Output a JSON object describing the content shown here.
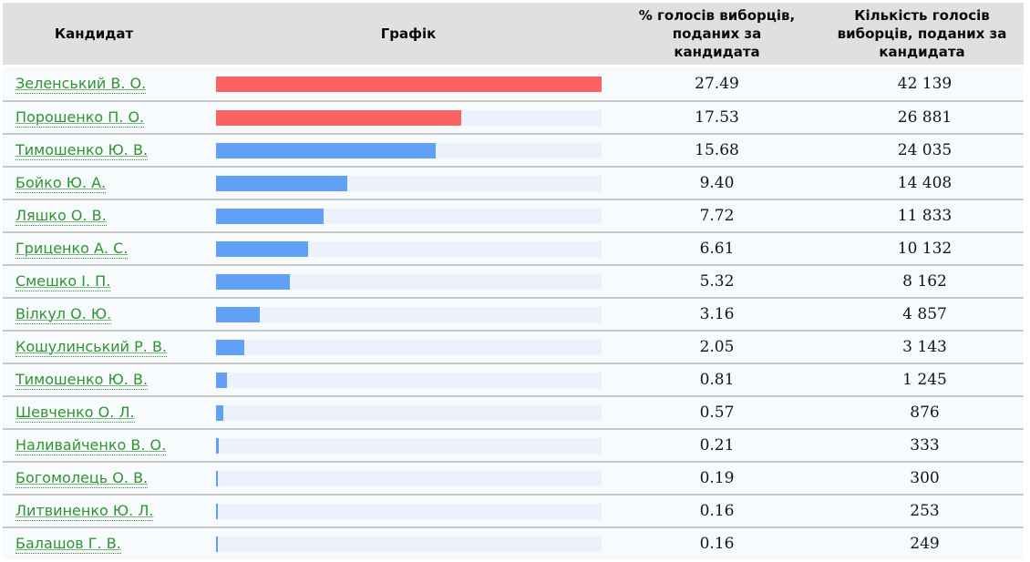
{
  "colors": {
    "header_bg": "#e0e0e0",
    "row_bg": "#f7fbfd",
    "separator": "#c8c8c8",
    "bar_track": "#edf1fb",
    "bar_red": "#fd6263",
    "bar_blue": "#60a0f7",
    "link_green": "#2f962f"
  },
  "table": {
    "columns": [
      {
        "label": "Кандидат"
      },
      {
        "label": "Графік"
      },
      {
        "label": "% голосів виборців, поданих за кандидата"
      },
      {
        "label": "Кількість голосів виборців, поданих за кандидата"
      }
    ],
    "rows": [
      {
        "candidate": "Зеленський В. О.",
        "percent": "27.49",
        "votes": "42 139",
        "bar_color": "#fd6263"
      },
      {
        "candidate": "Порошенко П. О.",
        "percent": "17.53",
        "votes": "26 881",
        "bar_color": "#fd6263"
      },
      {
        "candidate": "Тимошенко Ю. В.",
        "percent": "15.68",
        "votes": "24 035",
        "bar_color": "#60a0f7"
      },
      {
        "candidate": "Бойко Ю. А.",
        "percent": "9.40",
        "votes": "14 408",
        "bar_color": "#60a0f7"
      },
      {
        "candidate": "Ляшко О. В.",
        "percent": "7.72",
        "votes": "11 833",
        "bar_color": "#60a0f7"
      },
      {
        "candidate": "Гриценко А. С.",
        "percent": "6.61",
        "votes": "10 132",
        "bar_color": "#60a0f7"
      },
      {
        "candidate": "Смешко І. П.",
        "percent": "5.32",
        "votes": "8 162",
        "bar_color": "#60a0f7"
      },
      {
        "candidate": "Вілкул О. Ю.",
        "percent": "3.16",
        "votes": "4 857",
        "bar_color": "#60a0f7"
      },
      {
        "candidate": "Кошулинський Р. В.",
        "percent": "2.05",
        "votes": "3 143",
        "bar_color": "#60a0f7"
      },
      {
        "candidate": "Тимошенко Ю. В.",
        "percent": "0.81",
        "votes": "1 245",
        "bar_color": "#60a0f7"
      },
      {
        "candidate": "Шевченко О. Л.",
        "percent": "0.57",
        "votes": "876",
        "bar_color": "#60a0f7"
      },
      {
        "candidate": "Наливайченко В. О.",
        "percent": "0.21",
        "votes": "333",
        "bar_color": "#60a0f7"
      },
      {
        "candidate": "Богомолець О. В.",
        "percent": "0.19",
        "votes": "300",
        "bar_color": "#60a0f7"
      },
      {
        "candidate": "Литвиненко Ю. Л.",
        "percent": "0.16",
        "votes": "253",
        "bar_color": "#60a0f7"
      },
      {
        "candidate": "Балашов Г. В.",
        "percent": "0.16",
        "votes": "249",
        "bar_color": "#60a0f7"
      }
    ]
  },
  "chart_data": {
    "type": "bar",
    "orientation": "horizontal",
    "title": "",
    "categories": [
      "Зеленський В. О.",
      "Порошенко П. О.",
      "Тимошенко Ю. В.",
      "Бойко Ю. А.",
      "Ляшко О. В.",
      "Гриценко А. С.",
      "Смешко І. П.",
      "Вілкул О. Ю.",
      "Кошулинський Р. В.",
      "Тимошенко Ю. В.",
      "Шевченко О. Л.",
      "Наливайченко В. О.",
      "Богомолець О. В.",
      "Литвиненко Ю. Л.",
      "Балашов Г. В."
    ],
    "series": [
      {
        "name": "% голосів виборців, поданих за кандидата",
        "values": [
          27.49,
          17.53,
          15.68,
          9.4,
          7.72,
          6.61,
          5.32,
          3.16,
          2.05,
          0.81,
          0.57,
          0.21,
          0.19,
          0.16,
          0.16
        ]
      },
      {
        "name": "Кількість голосів виборців, поданих за кандидата",
        "values": [
          42139,
          26881,
          24035,
          14408,
          11833,
          10132,
          8162,
          4857,
          3143,
          1245,
          876,
          333,
          300,
          253,
          249
        ]
      }
    ],
    "xlim": [
      0,
      27.49
    ],
    "grid": false,
    "legend": false,
    "bar_colors": {
      "top_two": "#fd6263",
      "others": "#60a0f7"
    }
  }
}
